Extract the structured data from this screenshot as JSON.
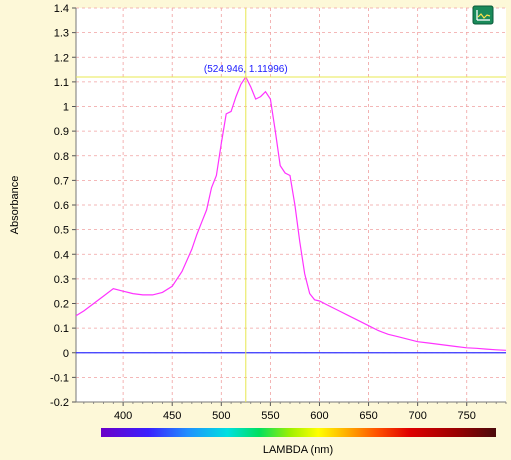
{
  "chart_data": {
    "type": "line",
    "title": "",
    "xlabel": "LAMBDA (nm)",
    "ylabel": "Absorbance",
    "xlim": [
      352,
      790
    ],
    "ylim": [
      -0.2,
      1.4
    ],
    "x_ticks": [
      400,
      450,
      500,
      550,
      600,
      650,
      700,
      750
    ],
    "y_ticks": [
      -0.2,
      -0.1,
      0,
      0.1,
      0.2,
      0.3,
      0.4,
      0.5,
      0.6,
      0.7,
      0.8,
      0.9,
      1.0,
      1.1,
      1.2,
      1.3,
      1.4
    ],
    "y_tick_labels": [
      "-0.2",
      "-0.1",
      "0",
      "0.1",
      "0.2",
      "0.3",
      "0.4",
      "0.5",
      "0.6",
      "0.7",
      "0.8",
      "0.9",
      "1",
      "1.1",
      "1.2",
      "1.3",
      "1.4"
    ],
    "grid": true,
    "colors": {
      "background": "#fdf8d8",
      "plot_bg": "#ffffff",
      "grid": "#f0a0a0",
      "spectrum": "#ff33ff",
      "baseline": "#3333ff",
      "cursor": "#e8e850",
      "cursor_text": "#1a1aff"
    },
    "cursor": {
      "x": 524.946,
      "y": 1.11996,
      "label": "(524.946, 1.11996)"
    },
    "baseline": {
      "y": 0
    },
    "series": [
      {
        "x": [
          352,
          360,
          370,
          380,
          390,
          400,
          410,
          420,
          430,
          440,
          450,
          460,
          470,
          475,
          480,
          485,
          490,
          495,
          500,
          505,
          510,
          515,
          520,
          525,
          530,
          535,
          540,
          545,
          550,
          555,
          560,
          565,
          570,
          575,
          580,
          585,
          590,
          595,
          600,
          610,
          620,
          630,
          640,
          650,
          660,
          670,
          680,
          690,
          700,
          710,
          720,
          730,
          740,
          750,
          760,
          770,
          780,
          790
        ],
        "y": [
          0.15,
          0.17,
          0.2,
          0.23,
          0.26,
          0.25,
          0.24,
          0.235,
          0.235,
          0.245,
          0.27,
          0.33,
          0.42,
          0.48,
          0.53,
          0.58,
          0.67,
          0.72,
          0.85,
          0.97,
          0.98,
          1.04,
          1.09,
          1.12,
          1.08,
          1.03,
          1.04,
          1.06,
          1.03,
          0.9,
          0.76,
          0.73,
          0.72,
          0.6,
          0.45,
          0.32,
          0.24,
          0.215,
          0.21,
          0.19,
          0.17,
          0.15,
          0.13,
          0.11,
          0.09,
          0.075,
          0.065,
          0.055,
          0.045,
          0.04,
          0.035,
          0.03,
          0.025,
          0.02,
          0.018,
          0.015,
          0.012,
          0.01
        ]
      }
    ]
  },
  "toolbar": {
    "icon": "chart-icon"
  }
}
